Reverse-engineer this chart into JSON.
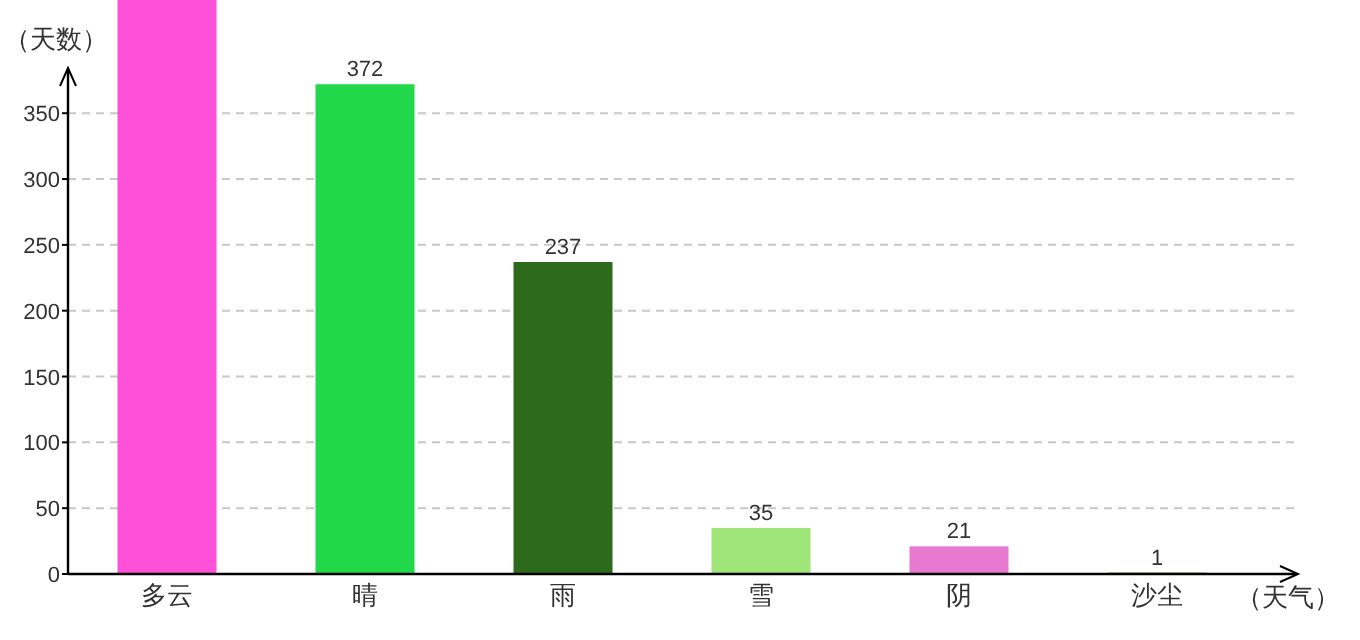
{
  "chart_data": {
    "type": "bar",
    "xlabel": "（天气）",
    "ylabel": "（天数）",
    "categories": [
      "多云",
      "晴",
      "雨",
      "雪",
      "阴",
      "沙尘"
    ],
    "values": [
      436,
      372,
      237,
      35,
      21,
      1
    ],
    "colors": [
      "#fe50d8",
      "#22d84a",
      "#2d6a1b",
      "#a0e57a",
      "#e879d0",
      "#2d6a1b"
    ],
    "value_labels": [
      null,
      "372",
      "237",
      "35",
      "21",
      "1"
    ],
    "ylim": [
      0,
      436
    ],
    "yticks": [
      0,
      50,
      100,
      150,
      200,
      250,
      300,
      350
    ],
    "grid": "y"
  }
}
